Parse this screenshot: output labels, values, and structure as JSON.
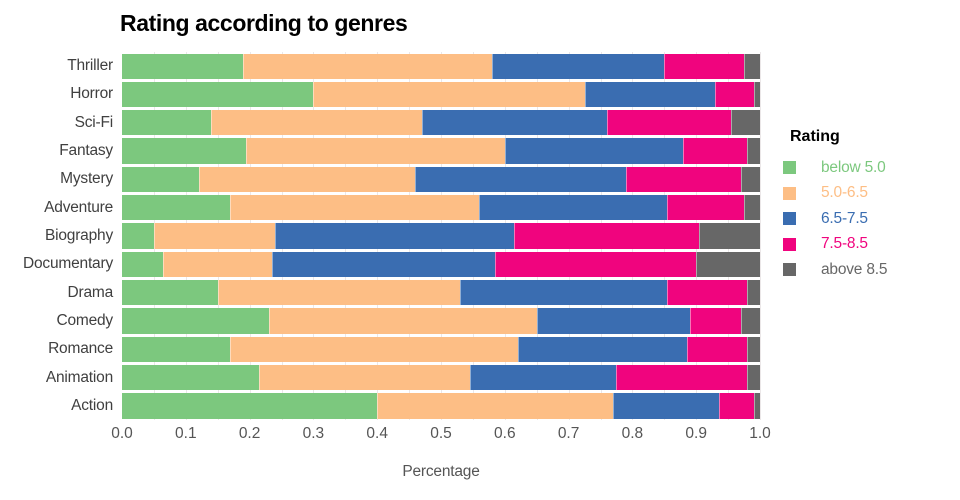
{
  "title": "Rating according to genres",
  "axis": {
    "tick_labels": [
      "0.0",
      "0.1",
      "0.2",
      "0.3",
      "0.4",
      "0.5",
      "0.6",
      "0.7",
      "0.8",
      "0.9",
      "1.0"
    ],
    "range": [
      0,
      1
    ],
    "minor_grid_step": 0.05
  },
  "legend": {
    "title": "Rating",
    "items": [
      {
        "label": "below 5.0",
        "color": "#7cc87e"
      },
      {
        "label": "5.0-6.5",
        "color": "#fdbe85"
      },
      {
        "label": "6.5-7.5",
        "color": "#3a6db1"
      },
      {
        "label": "7.5-8.5",
        "color": "#f0047e"
      },
      {
        "label": "above 8.5",
        "color": "#676767"
      }
    ]
  },
  "chart_data": {
    "type": "bar",
    "orientation": "horizontal",
    "stacked": true,
    "normalized": true,
    "title": "Rating according to genres",
    "xlabel": "Percentage",
    "ylabel": "",
    "xlim": [
      0,
      1
    ],
    "grid": "vertical-minor",
    "legend_position": "right",
    "categories": [
      "Thriller",
      "Horror",
      "Sci-Fi",
      "Fantasy",
      "Mystery",
      "Adventure",
      "Biography",
      "Documentary",
      "Drama",
      "Comedy",
      "Romance",
      "Animation",
      "Action"
    ],
    "series": [
      {
        "name": "below 5.0",
        "color": "#7cc87e",
        "values": [
          0.19,
          0.3,
          0.14,
          0.195,
          0.12,
          0.17,
          0.05,
          0.065,
          0.15,
          0.23,
          0.17,
          0.215,
          0.4
        ]
      },
      {
        "name": "5.0-6.5",
        "color": "#fdbe85",
        "values": [
          0.39,
          0.425,
          0.33,
          0.405,
          0.34,
          0.39,
          0.19,
          0.17,
          0.38,
          0.42,
          0.45,
          0.33,
          0.37
        ]
      },
      {
        "name": "6.5-7.5",
        "color": "#3a6db1",
        "values": [
          0.27,
          0.205,
          0.29,
          0.28,
          0.33,
          0.295,
          0.375,
          0.35,
          0.325,
          0.24,
          0.265,
          0.23,
          0.165
        ]
      },
      {
        "name": "7.5-8.5",
        "color": "#f0047e",
        "values": [
          0.125,
          0.06,
          0.195,
          0.1,
          0.18,
          0.12,
          0.29,
          0.315,
          0.125,
          0.08,
          0.095,
          0.205,
          0.055
        ]
      },
      {
        "name": "above 8.5",
        "color": "#676767",
        "values": [
          0.025,
          0.01,
          0.045,
          0.02,
          0.03,
          0.025,
          0.095,
          0.1,
          0.02,
          0.03,
          0.02,
          0.02,
          0.01
        ]
      }
    ]
  }
}
